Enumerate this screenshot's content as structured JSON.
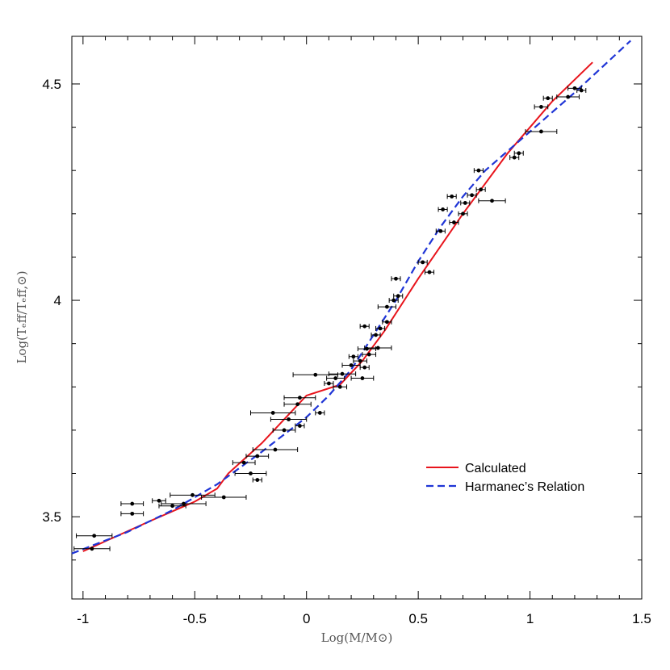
{
  "chart_data": {
    "type": "scatter",
    "xlabel": "Log(M/M⊙)",
    "ylabel": "Log(Tₑff/Tₑff,⊙)",
    "xlim": [
      -1.05,
      1.5
    ],
    "ylim": [
      3.31,
      4.61
    ],
    "x_ticks": [
      -1,
      -0.5,
      0,
      0.5,
      1,
      1.5
    ],
    "x_tick_labels": [
      "-1",
      "-0.5",
      "0",
      "0.5",
      "1",
      "1.5"
    ],
    "y_ticks": [
      3.5,
      4,
      4.5
    ],
    "y_tick_labels": [
      "3.5",
      "4",
      "4.5"
    ],
    "y_minor_ticks": [
      3.4,
      3.6,
      3.7,
      3.8,
      3.9,
      4.1,
      4.2,
      4.3,
      4.4
    ],
    "grid": false,
    "legend_position": "lower-right",
    "series": [
      {
        "name": "Calculated",
        "type": "line",
        "color": "#e8141c",
        "style": "solid",
        "x": [
          -1.0,
          -0.7,
          -0.5,
          -0.4,
          -0.35,
          -0.2,
          0.0,
          0.15,
          0.25,
          0.35,
          0.5,
          0.7,
          0.9,
          1.1,
          1.28
        ],
        "y": [
          3.42,
          3.49,
          3.535,
          3.565,
          3.6,
          3.67,
          3.78,
          3.805,
          3.86,
          3.93,
          4.05,
          4.2,
          4.34,
          4.46,
          4.55
        ]
      },
      {
        "name": "Harmanec’s Relation",
        "type": "line",
        "color": "#1f35d6",
        "style": "dashed",
        "x": [
          -1.05,
          -0.8,
          -0.6,
          -0.4,
          -0.2,
          0.0,
          0.1,
          0.2,
          0.3,
          0.4,
          0.5,
          0.6,
          0.7,
          0.8,
          1.0,
          1.2,
          1.45
        ],
        "y": [
          3.415,
          3.465,
          3.515,
          3.575,
          3.65,
          3.73,
          3.78,
          3.84,
          3.92,
          4.0,
          4.09,
          4.17,
          4.24,
          4.3,
          4.39,
          4.48,
          4.6
        ]
      },
      {
        "name": "",
        "type": "scatter",
        "color": "#000000",
        "points": [
          {
            "x": -0.95,
            "y": 3.456,
            "xerr": 0.08
          },
          {
            "x": -0.96,
            "y": 3.426,
            "xerr": 0.08
          },
          {
            "x": -0.78,
            "y": 3.53,
            "xerr": 0.05
          },
          {
            "x": -0.78,
            "y": 3.507,
            "xerr": 0.05
          },
          {
            "x": -0.66,
            "y": 3.537,
            "xerr": 0.03
          },
          {
            "x": -0.51,
            "y": 3.55,
            "xerr": 0.1
          },
          {
            "x": -0.6,
            "y": 3.525,
            "xerr": 0.06
          },
          {
            "x": -0.55,
            "y": 3.53,
            "xerr": 0.1
          },
          {
            "x": -0.37,
            "y": 3.545,
            "xerr": 0.1
          },
          {
            "x": -0.28,
            "y": 3.625,
            "xerr": 0.05
          },
          {
            "x": -0.25,
            "y": 3.6,
            "xerr": 0.07
          },
          {
            "x": -0.22,
            "y": 3.585,
            "xerr": 0.02
          },
          {
            "x": -0.22,
            "y": 3.64,
            "xerr": 0.05
          },
          {
            "x": -0.14,
            "y": 3.655,
            "xerr": 0.1
          },
          {
            "x": -0.1,
            "y": 3.7,
            "xerr": 0.05
          },
          {
            "x": -0.08,
            "y": 3.725,
            "xerr": 0.08
          },
          {
            "x": -0.15,
            "y": 3.74,
            "xerr": 0.1
          },
          {
            "x": -0.04,
            "y": 3.76,
            "xerr": 0.06
          },
          {
            "x": -0.03,
            "y": 3.775,
            "xerr": 0.07
          },
          {
            "x": 0.04,
            "y": 3.828,
            "xerr": 0.1
          },
          {
            "x": 0.06,
            "y": 3.74,
            "xerr": 0.02
          },
          {
            "x": -0.03,
            "y": 3.71,
            "xerr": 0.02
          },
          {
            "x": 0.1,
            "y": 3.808,
            "xerr": 0.02
          },
          {
            "x": 0.13,
            "y": 3.82,
            "xerr": 0.04
          },
          {
            "x": 0.16,
            "y": 3.83,
            "xerr": 0.06
          },
          {
            "x": 0.15,
            "y": 3.8,
            "xerr": 0.03
          },
          {
            "x": 0.2,
            "y": 3.85,
            "xerr": 0.04
          },
          {
            "x": 0.24,
            "y": 3.86,
            "xerr": 0.03
          },
          {
            "x": 0.21,
            "y": 3.87,
            "xerr": 0.02
          },
          {
            "x": 0.25,
            "y": 3.82,
            "xerr": 0.05
          },
          {
            "x": 0.26,
            "y": 3.845,
            "xerr": 0.02
          },
          {
            "x": 0.27,
            "y": 3.888,
            "xerr": 0.04
          },
          {
            "x": 0.28,
            "y": 3.875,
            "xerr": 0.03
          },
          {
            "x": 0.32,
            "y": 3.89,
            "xerr": 0.06
          },
          {
            "x": 0.31,
            "y": 3.92,
            "xerr": 0.02
          },
          {
            "x": 0.33,
            "y": 3.935,
            "xerr": 0.02
          },
          {
            "x": 0.26,
            "y": 3.94,
            "xerr": 0.02
          },
          {
            "x": 0.36,
            "y": 3.95,
            "xerr": 0.02
          },
          {
            "x": 0.36,
            "y": 3.985,
            "xerr": 0.04
          },
          {
            "x": 0.39,
            "y": 4.0,
            "xerr": 0.02
          },
          {
            "x": 0.41,
            "y": 4.01,
            "xerr": 0.02
          },
          {
            "x": 0.4,
            "y": 4.05,
            "xerr": 0.02
          },
          {
            "x": 0.52,
            "y": 4.088,
            "xerr": 0.02
          },
          {
            "x": 0.55,
            "y": 4.065,
            "xerr": 0.02
          },
          {
            "x": 0.6,
            "y": 4.16,
            "xerr": 0.02
          },
          {
            "x": 0.61,
            "y": 4.21,
            "xerr": 0.02
          },
          {
            "x": 0.65,
            "y": 4.24,
            "xerr": 0.02
          },
          {
            "x": 0.66,
            "y": 4.18,
            "xerr": 0.02
          },
          {
            "x": 0.7,
            "y": 4.2,
            "xerr": 0.02
          },
          {
            "x": 0.71,
            "y": 4.225,
            "xerr": 0.02
          },
          {
            "x": 0.74,
            "y": 4.243,
            "xerr": 0.02
          },
          {
            "x": 0.77,
            "y": 4.3,
            "xerr": 0.02
          },
          {
            "x": 0.78,
            "y": 4.256,
            "xerr": 0.02
          },
          {
            "x": 0.83,
            "y": 4.23,
            "xerr": 0.06
          },
          {
            "x": 0.93,
            "y": 4.33,
            "xerr": 0.02
          },
          {
            "x": 0.95,
            "y": 4.34,
            "xerr": 0.02
          },
          {
            "x": 1.05,
            "y": 4.39,
            "xerr": 0.07
          },
          {
            "x": 1.05,
            "y": 4.447,
            "xerr": 0.03
          },
          {
            "x": 1.08,
            "y": 4.467,
            "xerr": 0.02
          },
          {
            "x": 1.17,
            "y": 4.47,
            "xerr": 0.05
          },
          {
            "x": 1.2,
            "y": 4.49,
            "xerr": 0.03
          },
          {
            "x": 1.23,
            "y": 4.485,
            "xerr": 0.02
          }
        ]
      }
    ]
  }
}
